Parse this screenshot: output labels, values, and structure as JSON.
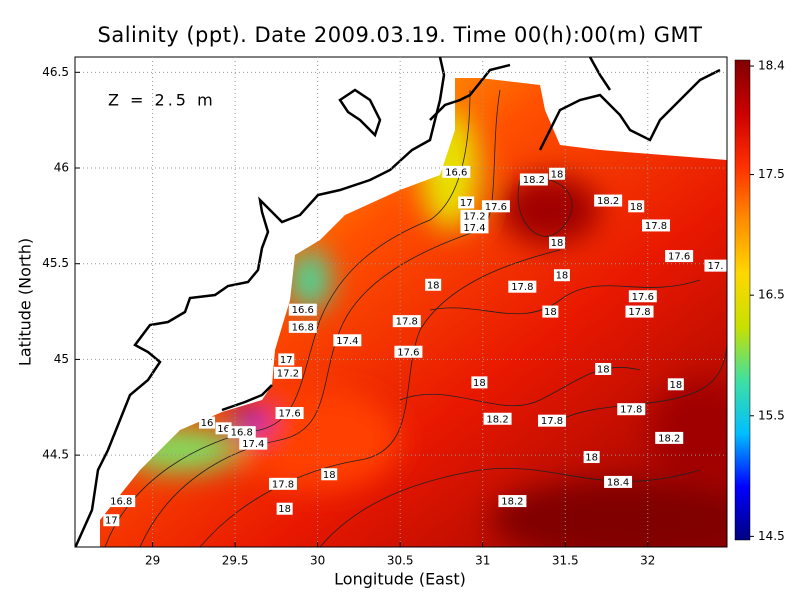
{
  "map": {
    "title": "Salinity (ppt). Date 2009.03.19. Time 00(h):00(m) GMT",
    "annotation": "Z = 2.5 m",
    "x_label": "Longitude (East)",
    "y_label": "Latitude (North)",
    "xlim": [
      28.53,
      32.48
    ],
    "ylim": [
      44.02,
      46.58
    ],
    "xticks": [
      29,
      29.5,
      30,
      30.5,
      31,
      31.5,
      32
    ],
    "yticks": [
      44.5,
      45,
      45.5,
      46,
      46.5
    ],
    "grid": true,
    "colorbar": {
      "lim": [
        14.47,
        18.45
      ],
      "ticks": [
        14.5,
        15.5,
        16.5,
        17.5,
        18.4
      ],
      "colormap": [
        "#00007f",
        "#0000ff",
        "#00bfff",
        "#40e0a0",
        "#c8e000",
        "#ffd700",
        "#ff8c00",
        "#ff3000",
        "#cc0000",
        "#800000"
      ]
    },
    "contour_labels": [
      {
        "label": "16.6",
        "lon": 30.84,
        "lat": 45.98
      },
      {
        "label": "18.2",
        "lon": 31.31,
        "lat": 45.94
      },
      {
        "label": "18",
        "lon": 31.45,
        "lat": 45.97
      },
      {
        "label": "18.2",
        "lon": 31.76,
        "lat": 45.83
      },
      {
        "label": "18",
        "lon": 31.93,
        "lat": 45.8
      },
      {
        "label": "17",
        "lon": 30.9,
        "lat": 45.82
      },
      {
        "label": "17.6",
        "lon": 31.08,
        "lat": 45.8
      },
      {
        "label": "17.2",
        "lon": 30.95,
        "lat": 45.75
      },
      {
        "label": "17.4",
        "lon": 30.95,
        "lat": 45.69
      },
      {
        "label": "17.8",
        "lon": 32.05,
        "lat": 45.7
      },
      {
        "label": "18",
        "lon": 31.45,
        "lat": 45.61
      },
      {
        "label": "17.6",
        "lon": 32.19,
        "lat": 45.54
      },
      {
        "label": "17.",
        "lon": 32.41,
        "lat": 45.49
      },
      {
        "label": "18",
        "lon": 30.7,
        "lat": 45.39
      },
      {
        "label": "17.8",
        "lon": 31.24,
        "lat": 45.38
      },
      {
        "label": "18",
        "lon": 31.48,
        "lat": 45.44
      },
      {
        "label": "17.6",
        "lon": 31.97,
        "lat": 45.33
      },
      {
        "label": "17.8",
        "lon": 31.95,
        "lat": 45.25
      },
      {
        "label": "18",
        "lon": 31.41,
        "lat": 45.25
      },
      {
        "label": "16.6",
        "lon": 29.91,
        "lat": 45.26
      },
      {
        "label": "16.8",
        "lon": 29.91,
        "lat": 45.17
      },
      {
        "label": "17.8",
        "lon": 30.54,
        "lat": 45.2
      },
      {
        "label": "17.4",
        "lon": 30.18,
        "lat": 45.1
      },
      {
        "label": "17.6",
        "lon": 30.55,
        "lat": 45.04
      },
      {
        "label": "17",
        "lon": 29.81,
        "lat": 45.0
      },
      {
        "label": "17.2",
        "lon": 29.82,
        "lat": 44.93
      },
      {
        "label": "18",
        "lon": 31.73,
        "lat": 44.95
      },
      {
        "label": "18",
        "lon": 30.98,
        "lat": 44.88
      },
      {
        "label": "18",
        "lon": 32.17,
        "lat": 44.87
      },
      {
        "label": "17.6",
        "lon": 29.83,
        "lat": 44.72
      },
      {
        "label": "17.8",
        "lon": 31.9,
        "lat": 44.74
      },
      {
        "label": "18.2",
        "lon": 31.09,
        "lat": 44.69
      },
      {
        "label": "17.8",
        "lon": 31.42,
        "lat": 44.68
      },
      {
        "label": "16",
        "lon": 29.33,
        "lat": 44.67
      },
      {
        "label": "16",
        "lon": 29.43,
        "lat": 44.64
      },
      {
        "label": "16.8",
        "lon": 29.54,
        "lat": 44.62
      },
      {
        "label": "17.4",
        "lon": 29.61,
        "lat": 44.56
      },
      {
        "label": "18.2",
        "lon": 32.13,
        "lat": 44.59
      },
      {
        "label": "18",
        "lon": 31.66,
        "lat": 44.49
      },
      {
        "label": "18.4",
        "lon": 31.82,
        "lat": 44.36
      },
      {
        "label": "17.8",
        "lon": 29.79,
        "lat": 44.35
      },
      {
        "label": "18",
        "lon": 30.07,
        "lat": 44.4
      },
      {
        "label": "18.2",
        "lon": 31.18,
        "lat": 44.26
      },
      {
        "label": "18",
        "lon": 29.8,
        "lat": 44.22
      },
      {
        "label": "16.8",
        "lon": 28.81,
        "lat": 44.26
      },
      {
        "label": "17",
        "lon": 28.75,
        "lat": 44.16
      }
    ]
  }
}
